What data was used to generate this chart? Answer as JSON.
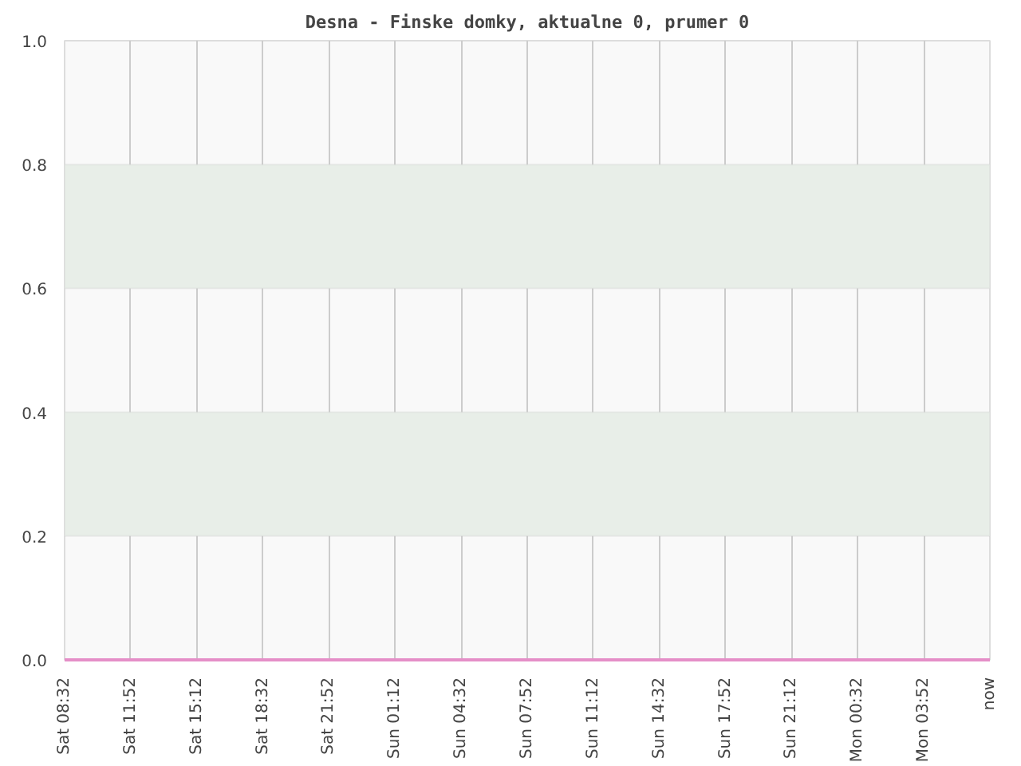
{
  "chart_data": {
    "type": "line",
    "title": "Desna - Finske domky, aktualne 0, prumer 0",
    "categories": [
      "Sat 08:32",
      "Sat 11:52",
      "Sat 15:12",
      "Sat 18:32",
      "Sat 21:52",
      "Sun 01:12",
      "Sun 04:32",
      "Sun 07:52",
      "Sun 11:12",
      "Sun 14:32",
      "Sun 17:52",
      "Sun 21:12",
      "Mon 00:32",
      "Mon 03:52",
      "now"
    ],
    "series": [
      {
        "color": "#e58fc8",
        "values": [
          0,
          0,
          0,
          0,
          0,
          0,
          0,
          0,
          0,
          0,
          0,
          0,
          0,
          0,
          0
        ]
      }
    ],
    "ylim": [
      0,
      1
    ],
    "yticks": [
      {
        "value": 0,
        "label": "0.0"
      },
      {
        "value": 0.2,
        "label": "0.2"
      },
      {
        "value": 0.4,
        "label": "0.4"
      },
      {
        "value": 0.6,
        "label": "0.6"
      },
      {
        "value": 0.8,
        "label": "0.8"
      },
      {
        "value": 1,
        "label": "1.0"
      }
    ],
    "bands": [
      {
        "axis": "y",
        "from": 0.2,
        "to": 0.4,
        "color": "#e8eee8"
      },
      {
        "axis": "y",
        "from": 0.6,
        "to": 0.8,
        "color": "#e8eee8"
      }
    ],
    "grid": "x"
  }
}
